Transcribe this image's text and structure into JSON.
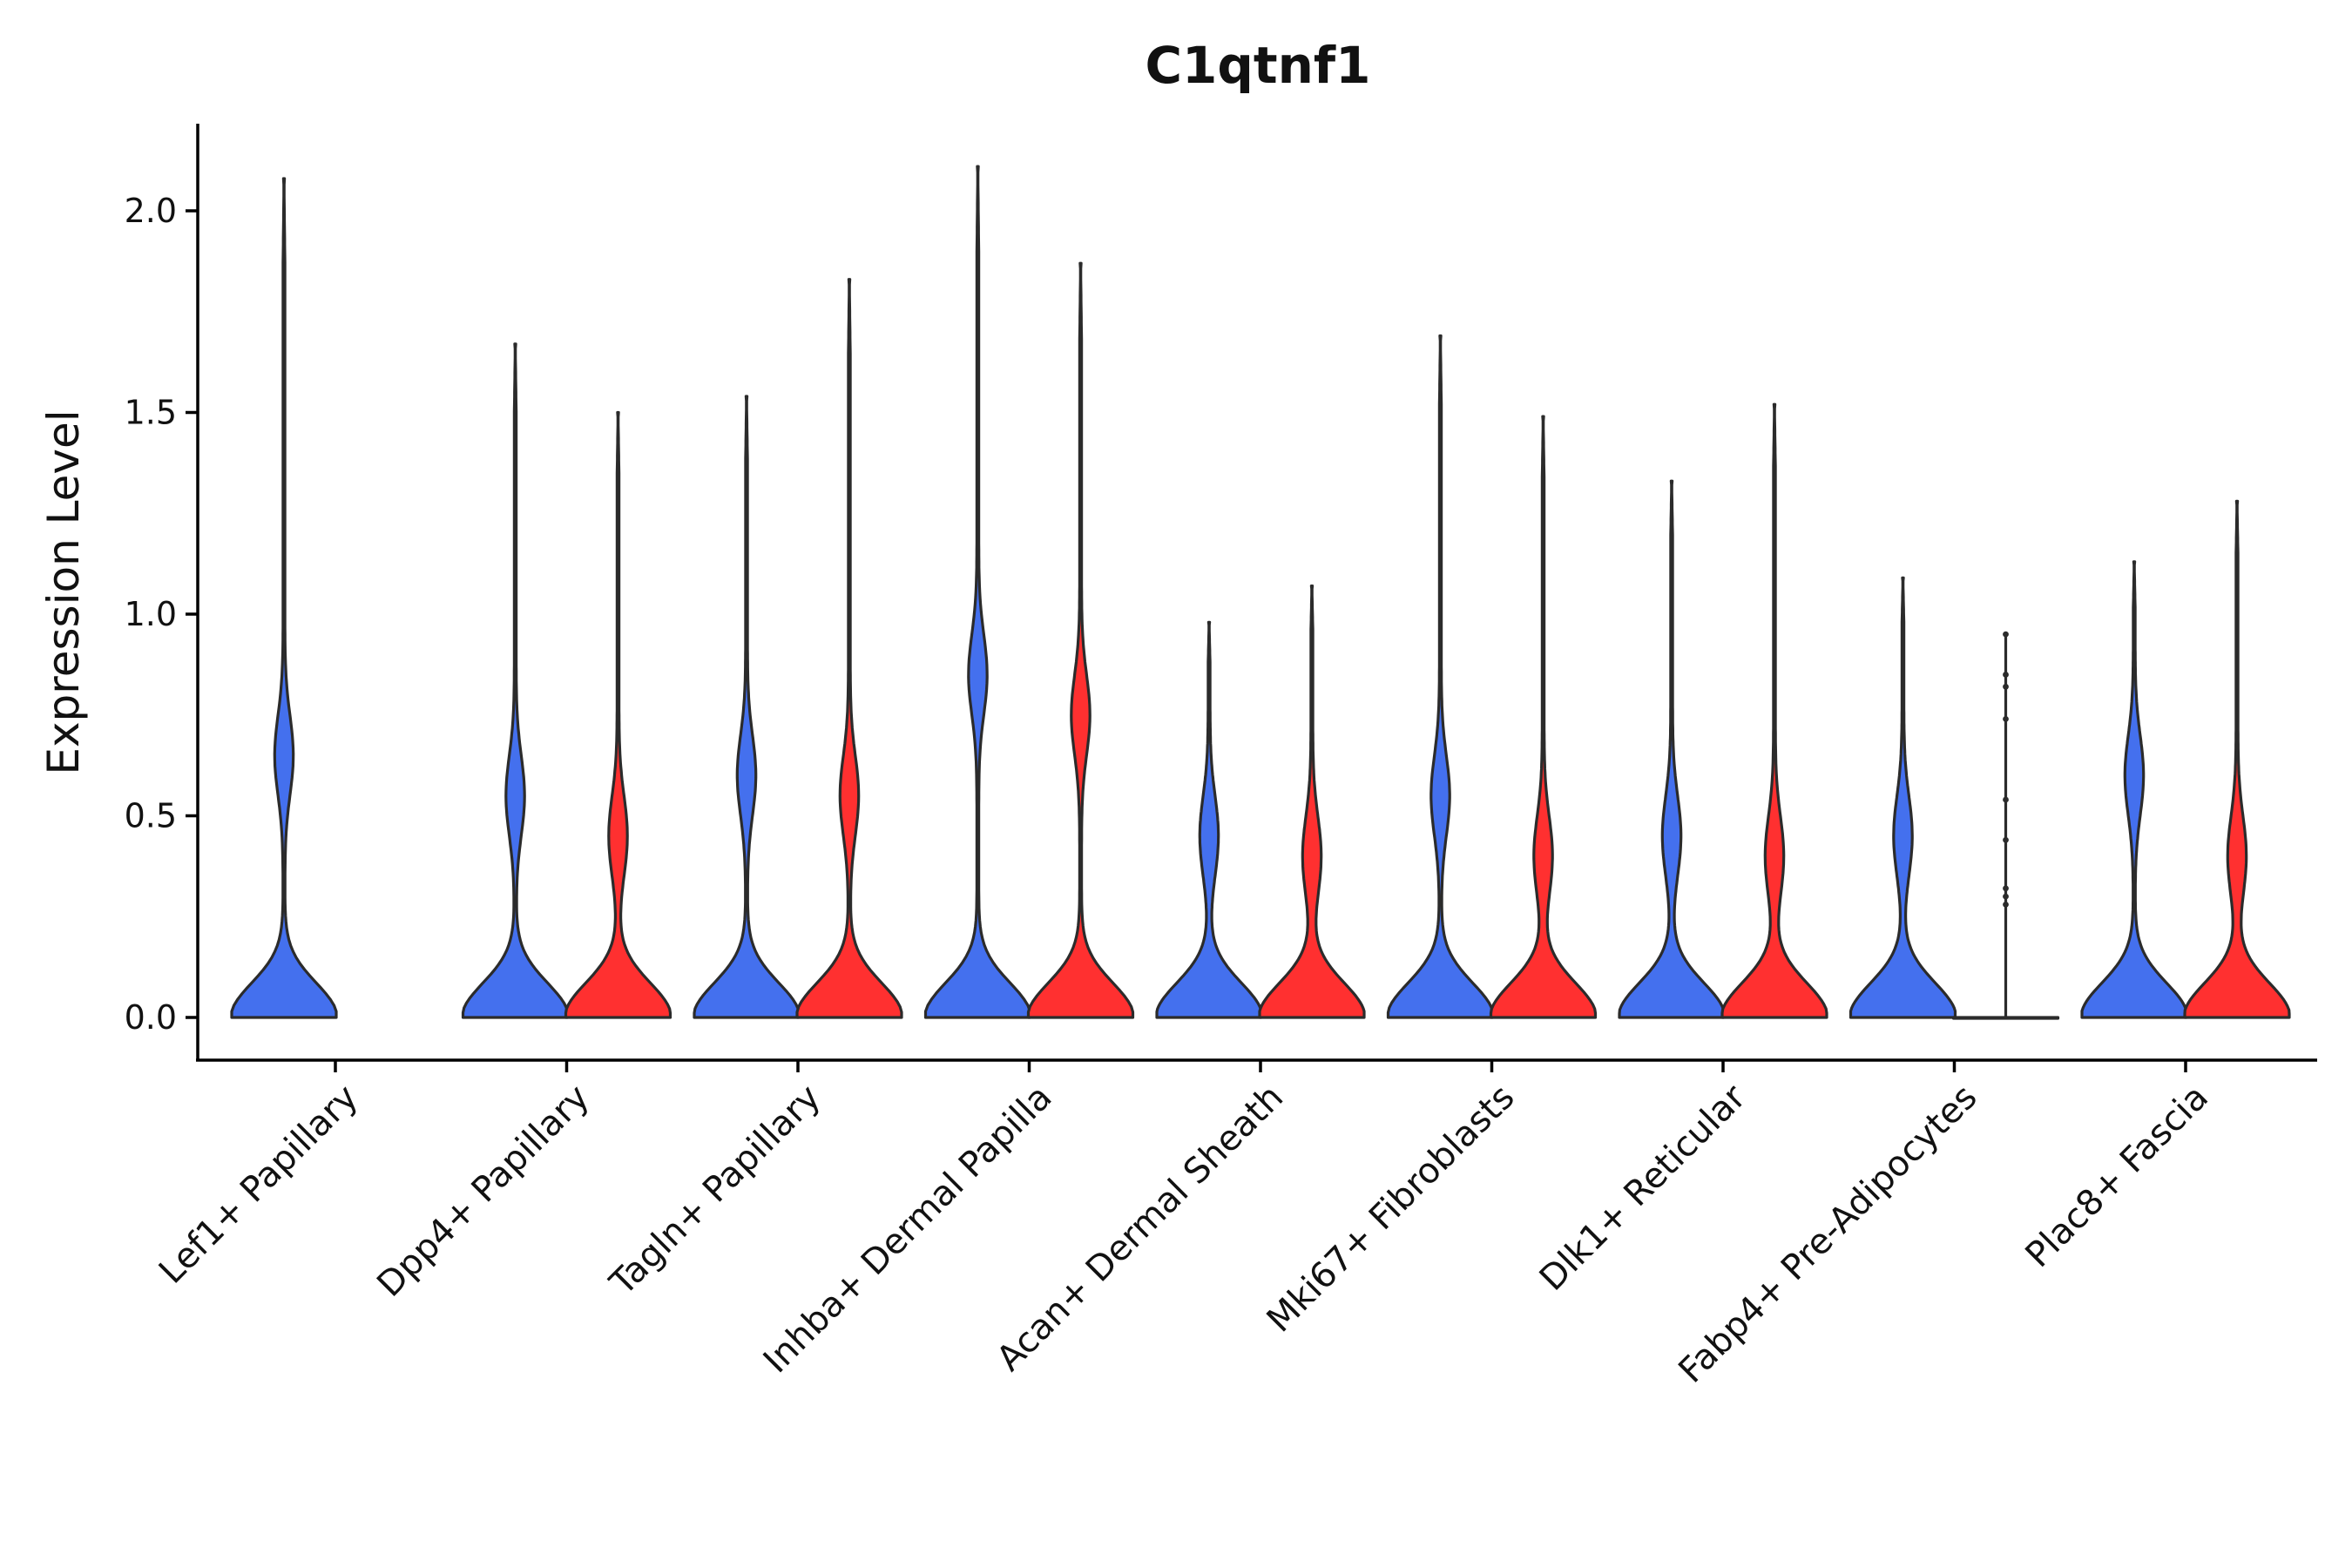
{
  "chart_data": {
    "type": "violin",
    "title": "C1qtnf1",
    "xlabel": "",
    "ylabel": "Expression Level",
    "ylim": [
      -0.1,
      2.2
    ],
    "yticks": [
      "0.0",
      "0.5",
      "1.0",
      "1.5",
      "2.0"
    ],
    "ytick_values": [
      0.0,
      0.5,
      1.0,
      1.5,
      2.0
    ],
    "categories": [
      "Lef1+ Papillary",
      "Dpp4+ Papillary",
      "Tagln+ Papillary",
      "Inhba+ Dermal Papilla",
      "Acan+ Dermal Sheath",
      "Mki67+ Fibroblasts",
      "Dlk1+ Reticular",
      "Fabp4+ Pre-Adipocytes",
      "Plac8+ Fascia"
    ],
    "colors": {
      "group1": "#4470ee",
      "group2": "#ff3030"
    },
    "series": [
      {
        "name": "group1",
        "color": "#4470ee",
        "max_values": [
          2.08,
          1.67,
          1.54,
          2.11,
          0.98,
          1.69,
          1.33,
          1.09,
          1.13
        ],
        "upper_mode_values": [
          0.65,
          0.55,
          0.6,
          0.85,
          0.45,
          0.55,
          0.45,
          0.45,
          0.6
        ]
      },
      {
        "name": "group2",
        "color": "#ff3030",
        "max_values": [
          null,
          1.5,
          1.83,
          1.87,
          1.07,
          1.49,
          1.52,
          0.95,
          1.28
        ],
        "upper_mode_values": [
          null,
          0.45,
          0.55,
          0.75,
          0.4,
          0.4,
          0.4,
          null,
          0.4
        ],
        "outliers": [
          null,
          null,
          null,
          null,
          null,
          null,
          null,
          [
            0.95,
            0.85,
            0.82,
            0.74,
            0.54,
            0.44,
            0.32,
            0.3,
            0.28
          ],
          null
        ]
      }
    ]
  }
}
